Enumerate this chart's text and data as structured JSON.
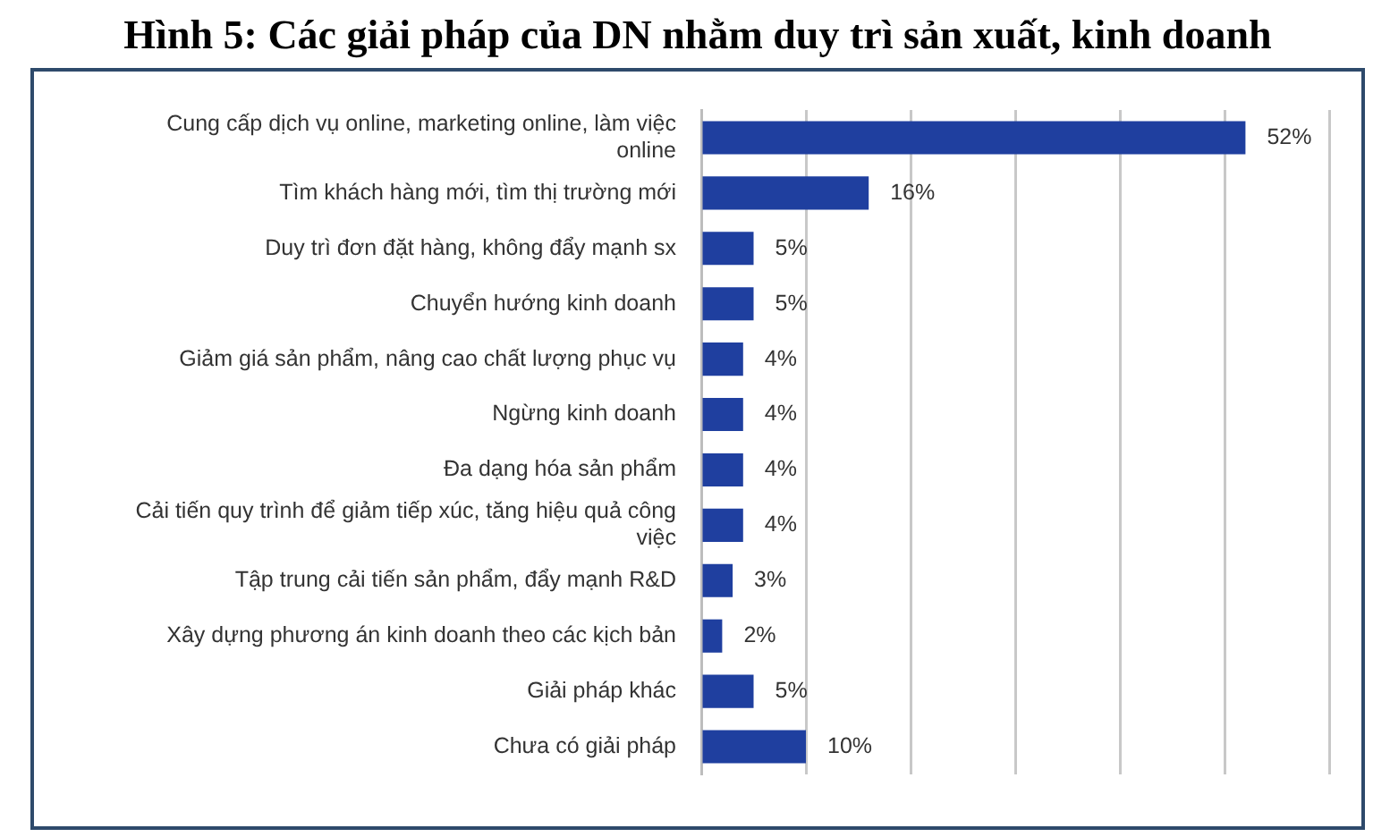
{
  "chart_data": {
    "type": "bar",
    "orientation": "horizontal",
    "title": "Hình 5: Các giải pháp của DN nhằm duy trì sản xuất, kinh doanh",
    "categories": [
      "Cung cấp dịch vụ online, marketing online, làm việc online",
      "Tìm khách hàng mới, tìm thị trường mới",
      "Duy trì đơn đặt hàng, không đẩy mạnh sx",
      "Chuyển hướng kinh doanh",
      "Giảm giá sản phẩm, nâng cao chất lượng phục vụ",
      "Ngừng kinh doanh",
      "Đa dạng hóa sản phẩm",
      "Cải tiến quy trình để giảm tiếp xúc, tăng hiệu quả công việc",
      "Tập trung cải tiến sản phẩm, đẩy mạnh R&D",
      "Xây dựng phương án kinh doanh theo các kịch bản",
      "Giải pháp khác",
      "Chưa có giải pháp"
    ],
    "values": [
      52,
      16,
      5,
      5,
      4,
      4,
      4,
      4,
      3,
      2,
      5,
      10
    ],
    "value_labels": [
      "52%",
      "16%",
      "5%",
      "5%",
      "4%",
      "4%",
      "4%",
      "4%",
      "3%",
      "2%",
      "5%",
      "10%"
    ],
    "color": "#1f3f9f",
    "xlim": [
      0,
      60
    ],
    "xticks": [
      {
        "value": 0,
        "label": null
      },
      {
        "value": 10,
        "label": null
      },
      {
        "value": 20,
        "label": null
      },
      {
        "value": 30,
        "label": null
      },
      {
        "value": 40,
        "label": null
      },
      {
        "value": 50,
        "label": null
      },
      {
        "value": 60,
        "label": null
      }
    ],
    "grid": "x",
    "tick_labels": "y"
  }
}
